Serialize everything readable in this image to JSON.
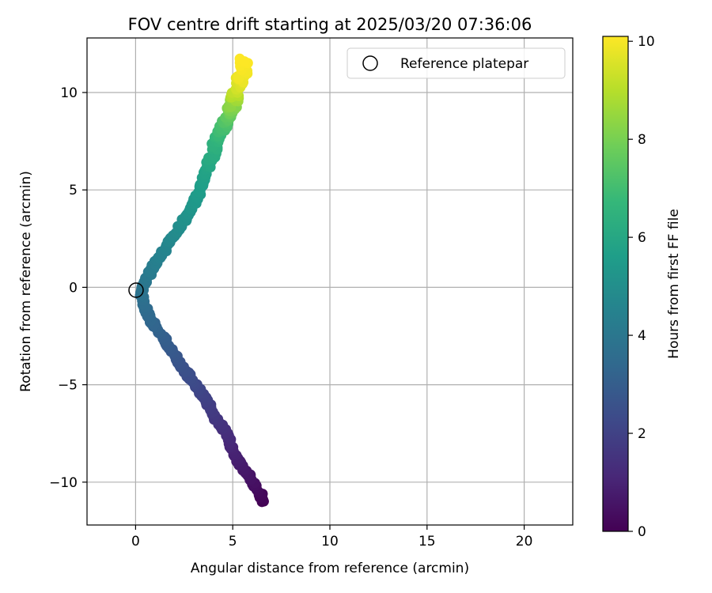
{
  "chart_data": {
    "type": "scatter",
    "title": "FOV centre drift starting at 2025/03/20 07:36:06",
    "xlabel": "Angular distance from reference (arcmin)",
    "ylabel": "Rotation from reference (arcmin)",
    "xlim": [
      -2.5,
      22.5
    ],
    "ylim": [
      -12.2,
      12.8
    ],
    "xticks": [
      0,
      5,
      10,
      15,
      20
    ],
    "yticks": [
      -10,
      -5,
      0,
      5,
      10
    ],
    "xtick_labels": [
      "0",
      "5",
      "10",
      "15",
      "20"
    ],
    "ytick_labels": [
      "−10",
      "−5",
      "0",
      "5",
      "10"
    ],
    "grid": true,
    "legend": {
      "position": "upper-right",
      "label": "Reference platepar"
    },
    "reference_point": {
      "x": 0,
      "y": 0,
      "marker": "open-circle"
    },
    "colorbar": {
      "label": "Hours from first FF file",
      "range": [
        0,
        10.1
      ],
      "ticks": [
        0,
        2,
        4,
        6,
        8,
        10
      ],
      "tick_labels": [
        "0",
        "2",
        "4",
        "6",
        "8",
        "10"
      ],
      "colormap": "viridis",
      "colors": [
        "#440154",
        "#482878",
        "#3e4989",
        "#31688e",
        "#26828e",
        "#1f9e89",
        "#35b779",
        "#6ece58",
        "#b5de2b",
        "#fde725"
      ]
    },
    "series": [
      {
        "color_by": "hours",
        "points": [
          {
            "x": 6.6,
            "y": -11.0,
            "h": 0.0
          },
          {
            "x": 6.4,
            "y": -10.6,
            "h": 0.2
          },
          {
            "x": 6.1,
            "y": -10.1,
            "h": 0.4
          },
          {
            "x": 5.7,
            "y": -9.5,
            "h": 0.6
          },
          {
            "x": 5.3,
            "y": -8.9,
            "h": 0.8
          },
          {
            "x": 5.0,
            "y": -8.3,
            "h": 1.0
          },
          {
            "x": 4.8,
            "y": -7.8,
            "h": 1.2
          },
          {
            "x": 4.5,
            "y": -7.2,
            "h": 1.4
          },
          {
            "x": 4.1,
            "y": -6.7,
            "h": 1.6
          },
          {
            "x": 3.8,
            "y": -6.1,
            "h": 1.8
          },
          {
            "x": 3.5,
            "y": -5.6,
            "h": 2.0
          },
          {
            "x": 3.1,
            "y": -5.0,
            "h": 2.2
          },
          {
            "x": 2.7,
            "y": -4.5,
            "h": 2.4
          },
          {
            "x": 2.3,
            "y": -3.9,
            "h": 2.6
          },
          {
            "x": 1.9,
            "y": -3.3,
            "h": 2.8
          },
          {
            "x": 1.5,
            "y": -2.7,
            "h": 3.0
          },
          {
            "x": 1.1,
            "y": -2.1,
            "h": 3.2
          },
          {
            "x": 0.7,
            "y": -1.5,
            "h": 3.4
          },
          {
            "x": 0.4,
            "y": -0.9,
            "h": 3.6
          },
          {
            "x": 0.3,
            "y": -0.3,
            "h": 3.8
          },
          {
            "x": 0.5,
            "y": 0.3,
            "h": 4.0
          },
          {
            "x": 0.8,
            "y": 0.9,
            "h": 4.2
          },
          {
            "x": 1.2,
            "y": 1.5,
            "h": 4.4
          },
          {
            "x": 1.6,
            "y": 2.1,
            "h": 4.6
          },
          {
            "x": 2.0,
            "y": 2.7,
            "h": 4.8
          },
          {
            "x": 2.4,
            "y": 3.3,
            "h": 5.0
          },
          {
            "x": 2.8,
            "y": 3.9,
            "h": 5.2
          },
          {
            "x": 3.1,
            "y": 4.5,
            "h": 5.4
          },
          {
            "x": 3.4,
            "y": 5.2,
            "h": 5.6
          },
          {
            "x": 3.6,
            "y": 5.9,
            "h": 5.8
          },
          {
            "x": 3.9,
            "y": 6.6,
            "h": 6.1
          },
          {
            "x": 4.1,
            "y": 7.3,
            "h": 6.4
          },
          {
            "x": 4.3,
            "y": 7.9,
            "h": 6.8
          },
          {
            "x": 4.6,
            "y": 8.4,
            "h": 7.2
          },
          {
            "x": 4.8,
            "y": 8.9,
            "h": 7.7
          },
          {
            "x": 5.0,
            "y": 9.4,
            "h": 8.3
          },
          {
            "x": 5.1,
            "y": 9.9,
            "h": 8.9
          },
          {
            "x": 5.2,
            "y": 10.4,
            "h": 9.5
          },
          {
            "x": 5.5,
            "y": 10.8,
            "h": 9.9
          },
          {
            "x": 5.6,
            "y": 11.6,
            "h": 10.1
          }
        ]
      }
    ]
  }
}
